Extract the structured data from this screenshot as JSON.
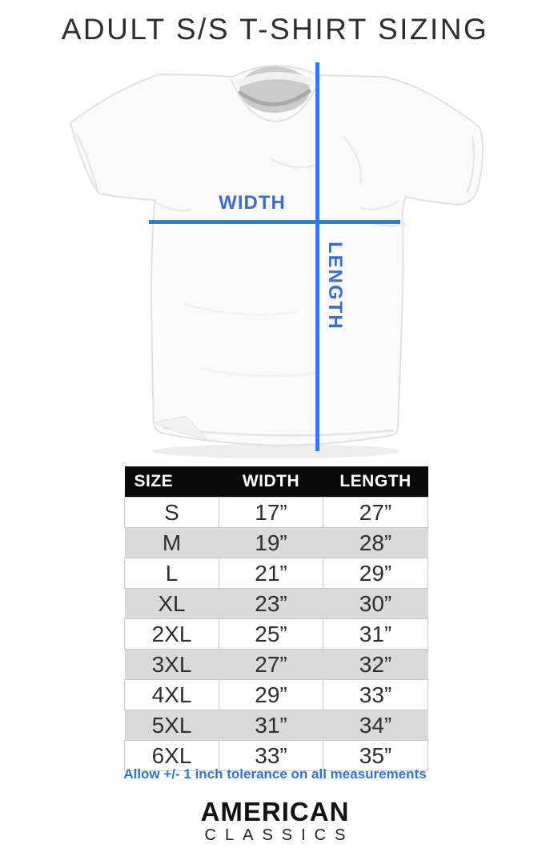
{
  "title": "ADULT S/S T-SHIRT SIZING",
  "diagram": {
    "width_label": "WIDTH",
    "length_label": "LENGTH"
  },
  "size_table": {
    "columns": [
      "SIZE",
      "WIDTH",
      "LENGTH"
    ],
    "rows": [
      [
        "S",
        "17”",
        "27”"
      ],
      [
        "M",
        "19”",
        "28”"
      ],
      [
        "L",
        "21”",
        "29”"
      ],
      [
        "XL",
        "23”",
        "30”"
      ],
      [
        "2XL",
        "25”",
        "31”"
      ],
      [
        "3XL",
        "27”",
        "32”"
      ],
      [
        "4XL",
        "29”",
        "33”"
      ],
      [
        "5XL",
        "31”",
        "34”"
      ],
      [
        "6XL",
        "33”",
        "35”"
      ]
    ]
  },
  "tolerance_note": "Allow +/- 1 inch tolerance on all measurements",
  "brand": {
    "line1": "AMERICAN",
    "line2": "CLASSICS"
  },
  "colors": {
    "measure_line_blue": "#2b7ce5",
    "measure_label_blue": "#3c6ccd",
    "note_blue": "#2f74ca",
    "header_bg": "#0a0a0a",
    "row_alt_gray": "#d9d9d9",
    "grid_line": "#c9c9c9",
    "text_dark": "#2e2e2e"
  }
}
